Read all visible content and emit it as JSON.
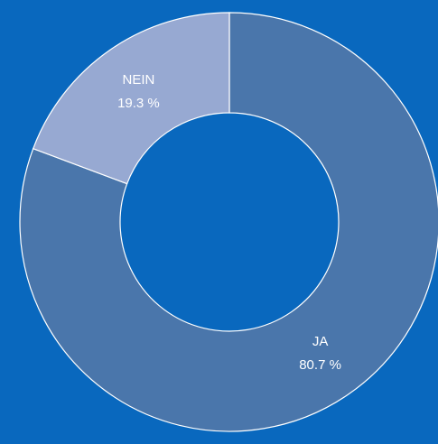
{
  "chart_data": {
    "type": "donut",
    "categories": [
      "JA",
      "NEIN"
    ],
    "values": [
      80.7,
      19.3
    ],
    "value_labels": [
      "80.7 %",
      "19.3 %"
    ],
    "colors": [
      "#4a76ab",
      "#97a9d2"
    ]
  }
}
